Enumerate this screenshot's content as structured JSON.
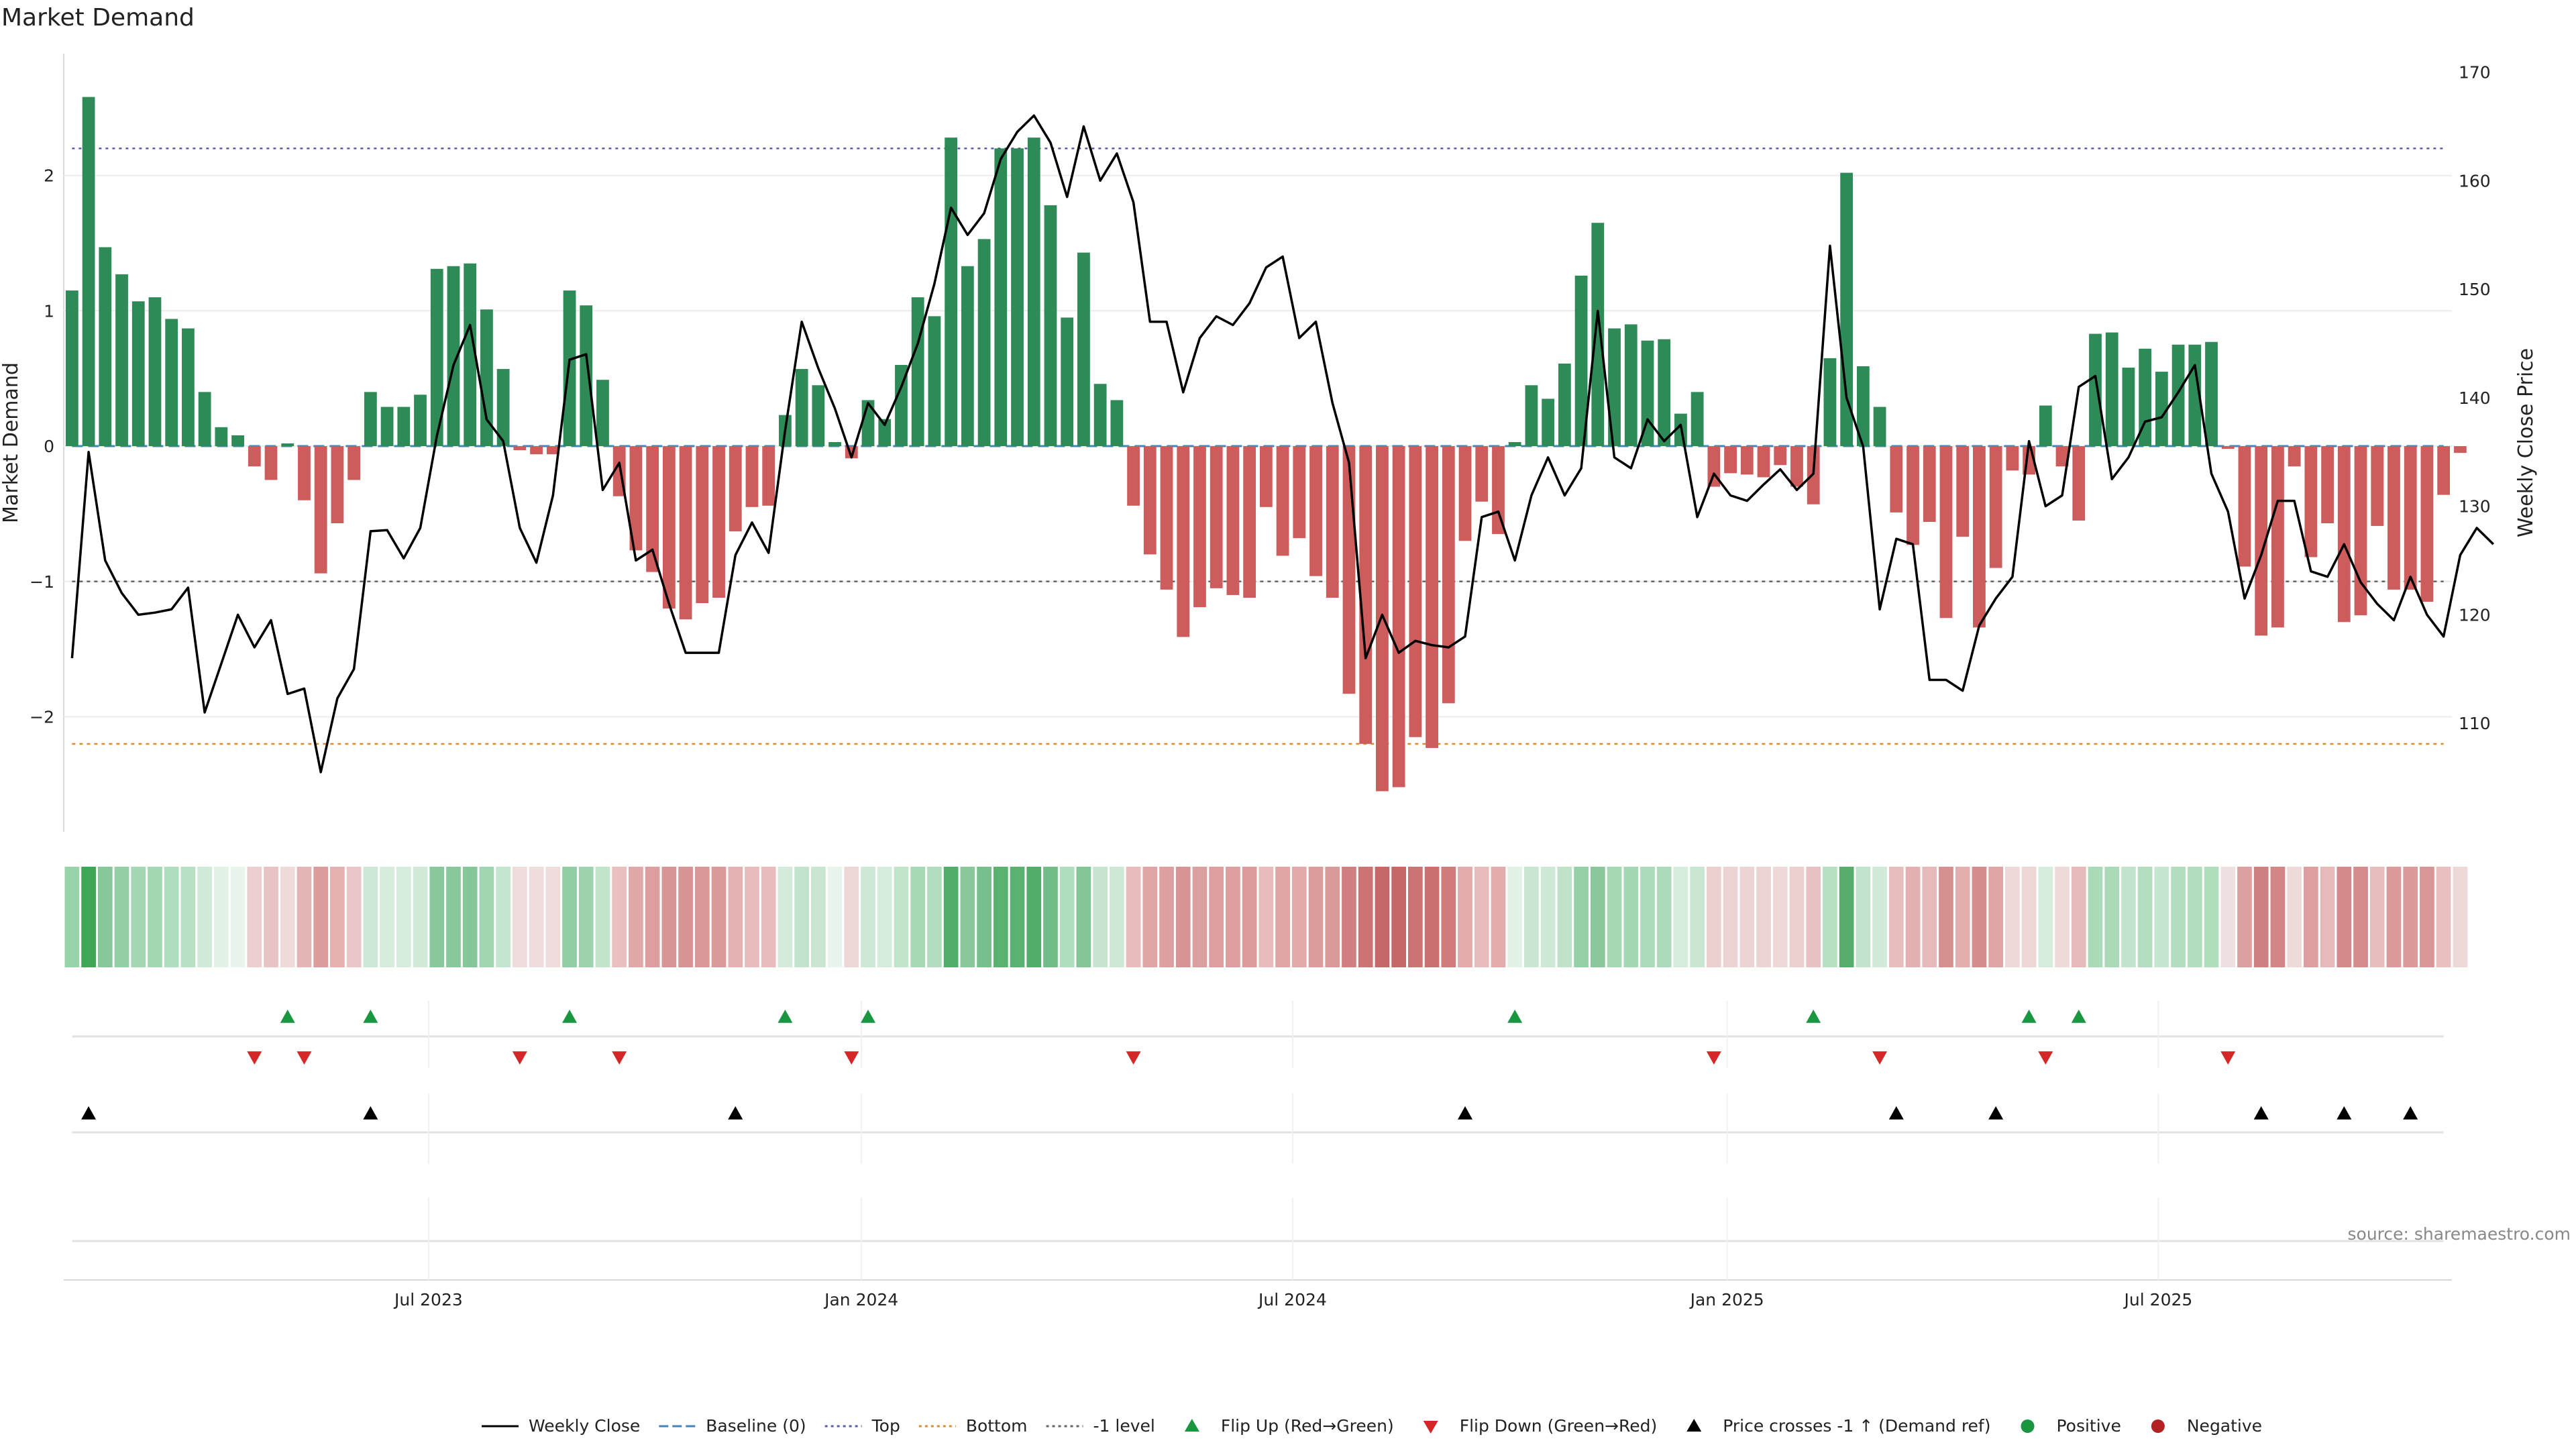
{
  "colors": {
    "positive": "#2e8b57",
    "negative": "#cd5c5c",
    "price": "#000000",
    "baseline": "#4682b4",
    "top": "#5b5ea6",
    "bottom": "#e08a2c",
    "minus_one": "#666666",
    "flip_up": "#1a9641",
    "flip_down": "#d62728",
    "cross": "#000000",
    "pos_dot": "#1a9641",
    "neg_dot": "#b22222"
  },
  "chart_data": {
    "type": "bar+line",
    "title": "Market Demand",
    "source": "source: sharemaestro.com",
    "ylabel_left": "Market Demand",
    "ylabel_right": "Weekly Close Price",
    "ylim_left": [
      -2.85,
      2.9
    ],
    "ylim_right": [
      100,
      171.7
    ],
    "yticks_left": [
      -2,
      -1,
      0,
      1,
      2
    ],
    "yticks_left_labels": [
      "−2",
      "−1",
      "0",
      "1",
      "2"
    ],
    "yticks_right": [
      110,
      120,
      130,
      140,
      150,
      160,
      170
    ],
    "x_range_weeks": [
      -0.5,
      143.5
    ],
    "xticks": [
      {
        "label": "Jul 2023",
        "week": 21.5
      },
      {
        "label": "Jan 2024",
        "week": 47.6
      },
      {
        "label": "Jul 2024",
        "week": 73.6
      },
      {
        "label": "Jan 2025",
        "week": 99.8
      },
      {
        "label": "Jul 2025",
        "week": 125.8
      }
    ],
    "levels": {
      "top": 2.2,
      "bottom": -2.2,
      "minus_one": -1,
      "baseline": 0
    },
    "demand": [
      1.15,
      2.58,
      1.47,
      1.27,
      1.07,
      1.1,
      0.94,
      0.87,
      0.4,
      0.14,
      0.08,
      -0.15,
      -0.25,
      0.02,
      -0.4,
      -0.94,
      -0.57,
      -0.25,
      0.4,
      0.29,
      0.29,
      0.38,
      1.31,
      1.33,
      1.35,
      1.01,
      0.57,
      -0.03,
      -0.06,
      -0.06,
      1.15,
      1.04,
      0.49,
      -0.37,
      -0.77,
      -0.93,
      -1.2,
      -1.28,
      -1.16,
      -1.12,
      -0.63,
      -0.45,
      -0.44,
      0.23,
      0.57,
      0.45,
      0.03,
      -0.09,
      0.34,
      0.2,
      0.6,
      1.1,
      0.96,
      2.28,
      1.33,
      1.53,
      2.2,
      2.2,
      2.28,
      1.78,
      0.95,
      1.43,
      0.46,
      0.34,
      -0.44,
      -0.8,
      -1.06,
      -1.41,
      -1.19,
      -1.05,
      -1.1,
      -1.12,
      -0.45,
      -0.81,
      -0.68,
      -0.96,
      -1.12,
      -1.83,
      -2.2,
      -2.55,
      -2.52,
      -2.15,
      -2.23,
      -1.9,
      -0.7,
      -0.41,
      -0.65,
      0.03,
      0.45,
      0.35,
      0.61,
      1.26,
      1.65,
      0.87,
      0.9,
      0.78,
      0.79,
      0.24,
      0.4,
      -0.3,
      -0.2,
      -0.21,
      -0.23,
      -0.14,
      -0.3,
      -0.43,
      0.65,
      2.02,
      0.59,
      0.29,
      -0.49,
      -0.73,
      -0.56,
      -1.27,
      -0.67,
      -1.34,
      -0.9,
      -0.18,
      -0.21,
      0.3,
      -0.15,
      -0.55,
      0.83,
      0.84,
      0.58,
      0.72,
      0.55,
      0.75,
      0.75,
      0.77,
      -0.02,
      -0.89,
      -1.4,
      -1.34,
      -0.15,
      -0.82,
      -0.57,
      -1.3,
      -1.25,
      -0.59,
      -1.06,
      -1.06,
      -1.15,
      -0.36,
      -0.05
    ],
    "price": [
      116,
      135,
      125,
      122,
      120,
      120.2,
      120.5,
      122.5,
      111,
      115.5,
      120,
      117,
      119.5,
      112.7,
      113.2,
      105.5,
      112.3,
      115,
      127.7,
      127.8,
      125.2,
      128,
      136.5,
      143,
      146.7,
      138,
      136,
      128,
      124.8,
      131,
      143.5,
      144,
      131.5,
      134,
      125,
      126,
      121,
      116.5,
      116.5,
      116.5,
      125.5,
      128.5,
      125.7,
      137,
      147,
      142.7,
      139,
      134.5,
      139.5,
      137.5,
      141,
      145,
      150.5,
      157.5,
      155,
      157,
      162,
      164.5,
      166,
      163.5,
      158.5,
      165,
      160,
      162.5,
      158,
      147,
      147,
      140.5,
      145.5,
      147.5,
      146.7,
      148.7,
      152,
      153,
      145.5,
      147,
      139.5,
      134,
      116,
      120,
      116.5,
      117.6,
      117.2,
      117,
      118,
      129,
      129.5,
      125,
      131,
      134.5,
      131,
      133.5,
      148,
      134.5,
      133.5,
      138,
      136,
      137.5,
      129,
      133,
      131,
      130.5,
      132,
      133.4,
      131.5,
      133,
      154,
      140,
      135.5,
      120.5,
      127,
      126.5,
      114,
      114,
      113,
      119,
      121.5,
      123.5,
      136,
      130,
      131,
      141,
      142,
      132.5,
      134.5,
      137.8,
      138.2,
      140.5,
      143,
      133,
      129.5,
      121.5,
      125.5,
      130.5,
      130.5,
      124,
      123.5,
      126.5,
      123,
      121,
      119.5,
      123.5,
      120,
      118,
      125.5,
      128,
      126.5
    ],
    "strip_colors": [
      "#98d3a9",
      "#40a657",
      "#87c89a",
      "#94cfa6",
      "#a4d8b4",
      "#a4d8b4",
      "#b0ddbe",
      "#b8e0c4",
      "#d0ebda",
      "#e2f2e7",
      "#e8f5ec",
      "#ecd0d0",
      "#e8c4c4",
      "#efdada",
      "#e4b6b6",
      "#dc9c9c",
      "#e4b0b0",
      "#ebc6c6",
      "#cde8d6",
      "#d6ecdc",
      "#d6ecdc",
      "#d0ead7",
      "#88c89b",
      "#88c89b",
      "#86c799",
      "#a0d6b1",
      "#c4e5ce",
      "#efdcdc",
      "#efdcdc",
      "#efdcdc",
      "#92ce a4",
      "#9cd2ad",
      "#c2e4cb",
      "#e8c0c0",
      "#e0a8a8",
      "#dc9e9e",
      "#d89595",
      "#d89494",
      "#da9898",
      "#da9a9a",
      "#e4b2b2",
      "#e8bcbc",
      "#e8bcbc",
      "#d4ebdb",
      "#c3e4cc",
      "#c8e6d0",
      "#e8f5ec",
      "#ecd6d6",
      "#cde8d5",
      "#d6ecdc",
      "#c2e4cb",
      "#a8d9b6",
      "#b2debf",
      "#53ad6a",
      "#88c89b",
      "#77c08d",
      "#5ab271",
      "#5ab271",
      "#53ad6a",
      "#70bd87",
      "#b0ddbd",
      "#84c697",
      "#c7e5cf",
      "#cde8d5",
      "#e8bcbc",
      "#e0a6a6",
      "#dca0a0",
      "#d89494",
      "#daa0a0",
      "#dc9e9e",
      "#dc9e9e",
      "#dc9c9c",
      "#e8bcbc",
      "#e0a6a6",
      "#e2aaaa",
      "#dc9c9c",
      "#d99a9a",
      "#d08080",
      "#cc7474",
      "#c66868",
      "#c66868",
      "#cc7474",
      "#cb7070",
      "#d07c7c",
      "#e2acac",
      "#e8bcbc",
      "#e2acac",
      "#e2f2e7",
      "#c8e6d0",
      "#cde8d5",
      "#bfe2c8",
      "#95d0a7",
      "#88c89b",
      "#a6d8b4",
      "#a4d8b4",
      "#acdaba",
      "#acdaba",
      "#d6ecdc",
      "#c8e6d0",
      "#ecd0d0",
      "#ecd4d4",
      "#ecd4d4",
      "#ecd4d4",
      "#eed8d8",
      "#ecd0d0",
      "#e8c2c2",
      "#b7e0c3",
      "#56ae6d",
      "#c3e4cc",
      "#d2ead9",
      "#e6bebe",
      "#e2b0b0",
      "#e6baba",
      "#d69090",
      "#e2aeae",
      "#d48c8c",
      "#e0a6a6",
      "#efd8d8",
      "#eed6d6",
      "#d6ecdc",
      "#efdada",
      "#e6baba",
      "#abdab8",
      "#abdab8",
      "#c3e4cc",
      "#b5dec1",
      "#c6e6cf",
      "#b2ddbe",
      "#b2ddbe",
      "#b0ddbc",
      "#eee0e0",
      "#dca0a0",
      "#cf8080",
      "#d28686",
      "#efdada",
      "#dc9e9e",
      "#e6baba",
      "#d48a8a",
      "#d48c8c",
      "#e6bebe",
      "#dc9a9a",
      "#dc9a9a",
      "#d99696",
      "#e8c0c0",
      "#eed8d8"
    ],
    "flip_up_weeks": [
      13,
      18,
      30,
      43,
      48,
      87,
      105,
      118,
      121
    ],
    "flip_down_weeks": [
      11,
      14,
      27,
      33,
      47,
      64,
      99,
      109,
      119,
      130
    ],
    "cross_weeks": [
      1,
      18,
      40,
      84,
      110,
      116,
      132,
      137,
      141
    ],
    "legend": [
      {
        "label": "Weekly Close",
        "kind": "line-solid",
        "color_key": "price"
      },
      {
        "label": "Baseline (0)",
        "kind": "line-dashed",
        "color_key": "baseline"
      },
      {
        "label": "Top",
        "kind": "line-dotted",
        "color_key": "top"
      },
      {
        "label": "Bottom",
        "kind": "line-dotted",
        "color_key": "bottom"
      },
      {
        "label": "-1 level",
        "kind": "line-dotted",
        "color_key": "minus_one"
      },
      {
        "label": "Flip Up (Red→Green)",
        "kind": "tri-up",
        "color_key": "flip_up"
      },
      {
        "label": "Flip Down (Green→Red)",
        "kind": "tri-down",
        "color_key": "flip_down"
      },
      {
        "label": "Price crosses -1 ↑ (Demand ref)",
        "kind": "tri-up",
        "color_key": "cross"
      },
      {
        "label": "Positive",
        "kind": "dot",
        "color_key": "pos_dot"
      },
      {
        "label": "Negative",
        "kind": "dot",
        "color_key": "neg_dot"
      }
    ]
  }
}
